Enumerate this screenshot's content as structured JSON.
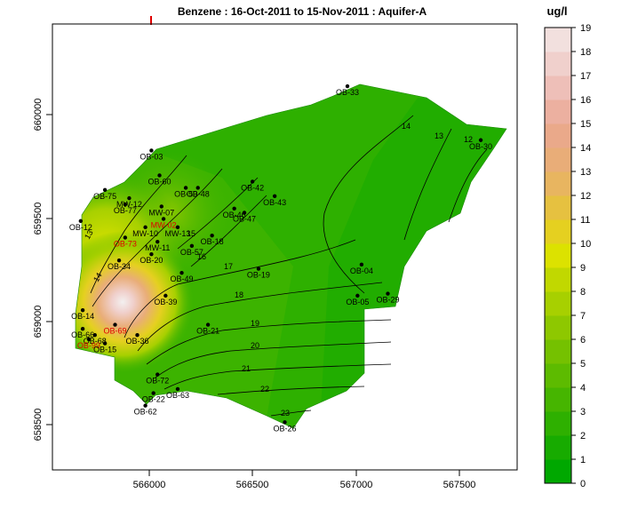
{
  "chart_data": {
    "type": "heatmap",
    "title": "Benzene : 16-Oct-2011 to 15-Nov-2011 : Aquifer-A",
    "xlabel": "",
    "ylabel": "",
    "xlim": [
      565550,
      567850
    ],
    "ylim": [
      658300,
      660450
    ],
    "x_ticks": [
      "566000",
      "566500",
      "567000",
      "567500"
    ],
    "y_ticks": [
      "658500",
      "659000",
      "659500",
      "660000"
    ],
    "colorbar": {
      "unit": "ug/l",
      "min": 0,
      "max": 19,
      "ticks": [
        "0",
        "1",
        "2",
        "3",
        "4",
        "5",
        "6",
        "7",
        "8",
        "9",
        "10",
        "11",
        "12",
        "13",
        "14",
        "15",
        "16",
        "17",
        "18",
        "19"
      ],
      "colors": [
        "#00a800",
        "#17ab00",
        "#2eb000",
        "#46b500",
        "#5dbb00",
        "#75c100",
        "#8ec800",
        "#a7d000",
        "#c1d800",
        "#dce200",
        "#e5d020",
        "#e6c140",
        "#e8b560",
        "#e9ad78",
        "#eaa98a",
        "#ecb0a0",
        "#eebfb8",
        "#f0d0cc",
        "#f2e0de",
        "#f3f0f0"
      ]
    },
    "contour_labels": [
      "12",
      "13",
      "14",
      "13",
      "14",
      "15",
      "16",
      "17",
      "18",
      "19",
      "20",
      "21",
      "22",
      "23"
    ],
    "wells": [
      {
        "name": "OB-33",
        "x": 567010,
        "y": 660150,
        "color": "black"
      },
      {
        "name": "OB-30",
        "x": 567670,
        "y": 659890,
        "color": "black"
      },
      {
        "name": "OB-03",
        "x": 566040,
        "y": 659840,
        "color": "black"
      },
      {
        "name": "OB-75",
        "x": 565810,
        "y": 659650,
        "color": "black"
      },
      {
        "name": "OB-77",
        "x": 565910,
        "y": 659580,
        "color": "black"
      },
      {
        "name": "OB-12",
        "x": 565690,
        "y": 659500,
        "color": "black"
      },
      {
        "name": "OB-60",
        "x": 566080,
        "y": 659720,
        "color": "black"
      },
      {
        "name": "OB-50",
        "x": 566210,
        "y": 659660,
        "color": "black"
      },
      {
        "name": "OB-48",
        "x": 566270,
        "y": 659660,
        "color": "black"
      },
      {
        "name": "OB-42",
        "x": 566540,
        "y": 659690,
        "color": "black"
      },
      {
        "name": "OB-43",
        "x": 566650,
        "y": 659620,
        "color": "black"
      },
      {
        "name": "OB-47",
        "x": 566500,
        "y": 659540,
        "color": "black"
      },
      {
        "name": "OB-46",
        "x": 566450,
        "y": 659560,
        "color": "black"
      },
      {
        "name": "MW-12",
        "x": 565930,
        "y": 659610,
        "color": "black"
      },
      {
        "name": "MW-07",
        "x": 566090,
        "y": 659570,
        "color": "black"
      },
      {
        "name": "MW-02",
        "x": 566100,
        "y": 659510,
        "color": "red"
      },
      {
        "name": "MW-10",
        "x": 566010,
        "y": 659470,
        "color": "black"
      },
      {
        "name": "MW-13",
        "x": 566170,
        "y": 659470,
        "color": "black"
      },
      {
        "name": "MW-11",
        "x": 566070,
        "y": 659400,
        "color": "black"
      },
      {
        "name": "OB-73",
        "x": 565910,
        "y": 659420,
        "color": "red"
      },
      {
        "name": "OB-18",
        "x": 566340,
        "y": 659430,
        "color": "black"
      },
      {
        "name": "OB-57",
        "x": 566240,
        "y": 659380,
        "color": "black"
      },
      {
        "name": "OB-20",
        "x": 566040,
        "y": 659340,
        "color": "black"
      },
      {
        "name": "OB-34",
        "x": 565880,
        "y": 659310,
        "color": "black"
      },
      {
        "name": "OB-49",
        "x": 566190,
        "y": 659250,
        "color": "black"
      },
      {
        "name": "OB-19",
        "x": 566570,
        "y": 659270,
        "color": "black"
      },
      {
        "name": "OB-04",
        "x": 567080,
        "y": 659290,
        "color": "black"
      },
      {
        "name": "OB-05",
        "x": 567060,
        "y": 659140,
        "color": "black"
      },
      {
        "name": "OB-29",
        "x": 567210,
        "y": 659150,
        "color": "black"
      },
      {
        "name": "OB-39",
        "x": 566110,
        "y": 659140,
        "color": "black"
      },
      {
        "name": "OB-14",
        "x": 565700,
        "y": 659070,
        "color": "black"
      },
      {
        "name": "OB-66",
        "x": 565700,
        "y": 658980,
        "color": "black"
      },
      {
        "name": "OB-68",
        "x": 565760,
        "y": 658950,
        "color": "black"
      },
      {
        "name": "OB-69",
        "x": 565860,
        "y": 659000,
        "color": "red"
      },
      {
        "name": "OB-36",
        "x": 565970,
        "y": 658950,
        "color": "black"
      },
      {
        "name": "OB-99",
        "x": 565730,
        "y": 658930,
        "color": "red"
      },
      {
        "name": "OB-15",
        "x": 565810,
        "y": 658910,
        "color": "black"
      },
      {
        "name": "OB-21",
        "x": 566320,
        "y": 659000,
        "color": "black"
      },
      {
        "name": "OB-72",
        "x": 566070,
        "y": 658760,
        "color": "black"
      },
      {
        "name": "OB-63",
        "x": 566170,
        "y": 658690,
        "color": "black"
      },
      {
        "name": "OB-22",
        "x": 566050,
        "y": 658670,
        "color": "black"
      },
      {
        "name": "OB-62",
        "x": 566010,
        "y": 658610,
        "color": "black"
      },
      {
        "name": "OB-26",
        "x": 566700,
        "y": 658530,
        "color": "black"
      }
    ]
  }
}
